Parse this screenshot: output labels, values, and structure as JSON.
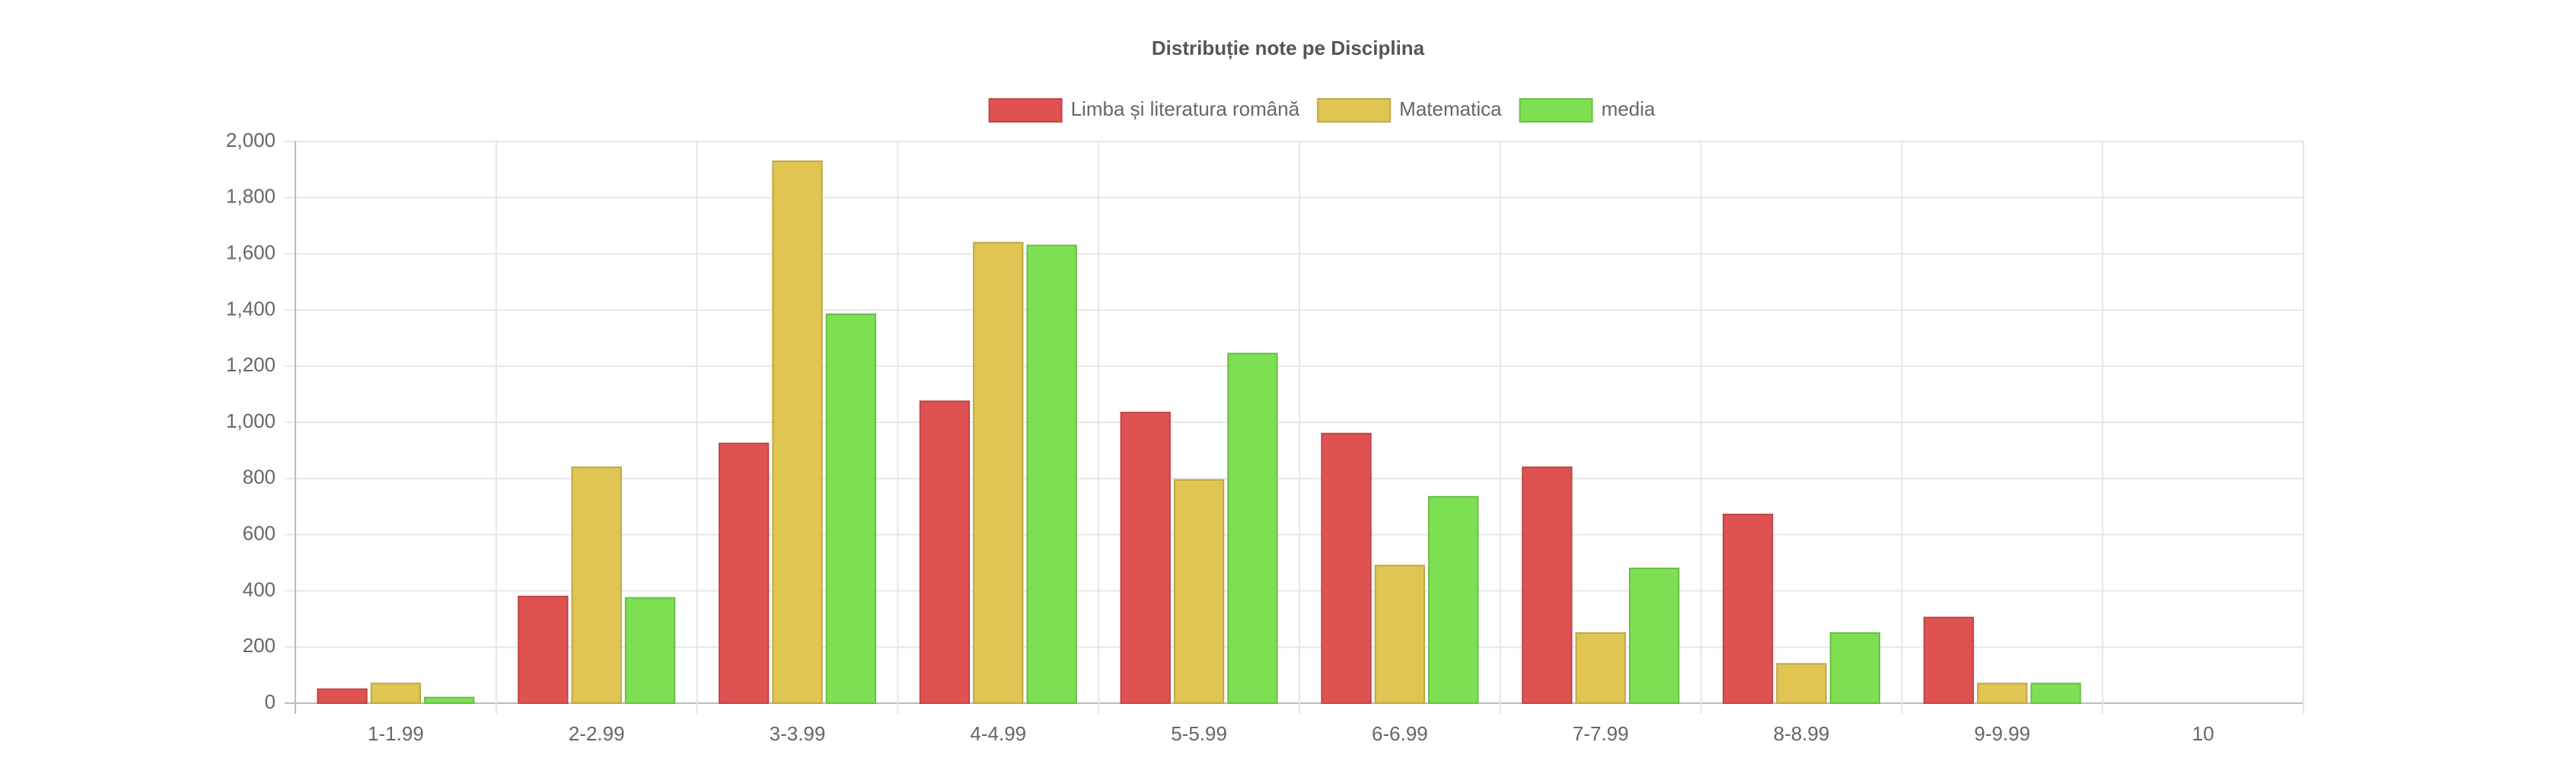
{
  "chart_data": {
    "type": "bar",
    "title": "Distribuție note pe Disciplina",
    "categories": [
      "1-1.99",
      "2-2.99",
      "3-3.99",
      "4-4.99",
      "5-5.99",
      "6-6.99",
      "7-7.99",
      "8-8.99",
      "9-9.99",
      "10"
    ],
    "series": [
      {
        "name": "Limba și literatura română",
        "color": "#e05252",
        "values": [
          50,
          380,
          925,
          1075,
          1035,
          960,
          840,
          672,
          305,
          0
        ]
      },
      {
        "name": "Matematica",
        "color": "#e0c552",
        "values": [
          70,
          840,
          1930,
          1640,
          795,
          490,
          250,
          140,
          70,
          0
        ]
      },
      {
        "name": "media",
        "color": "#7de052",
        "values": [
          20,
          375,
          1385,
          1630,
          1245,
          735,
          480,
          250,
          70,
          0
        ]
      }
    ],
    "ylim": [
      0,
      2000
    ],
    "yticks": [
      0,
      200,
      400,
      600,
      800,
      {
        "value": 1000,
        "label": "1,000"
      },
      {
        "value": 1200,
        "label": "1,200"
      },
      {
        "value": 1400,
        "label": "1,400"
      },
      {
        "value": 1600,
        "label": "1,600"
      },
      {
        "value": 1800,
        "label": "1,800"
      },
      {
        "value": 2000,
        "label": "2,000"
      }
    ],
    "grid": true,
    "legend": "top"
  }
}
